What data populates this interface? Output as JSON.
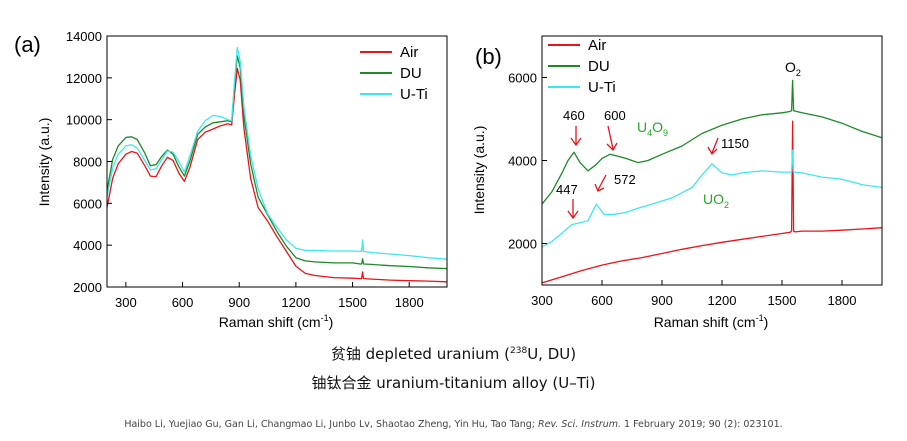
{
  "chart_data": [
    {
      "type": "line",
      "panel_label": "(a)",
      "xlabel_main": "Raman shift (cm",
      "xlabel_sup": "-1",
      "xlabel_tail": ")",
      "ylabel": "Intensity (a.u.)",
      "xlim": [
        200,
        2000
      ],
      "ylim": [
        2000,
        14000
      ],
      "xticks": [
        300,
        600,
        900,
        1200,
        1500,
        1800
      ],
      "yticks": [
        2000,
        4000,
        6000,
        8000,
        10000,
        12000,
        14000
      ],
      "legend_position": "top-right",
      "series": [
        {
          "name": "Air",
          "color": "#e8141b",
          "points": [
            [
              200,
              5800
            ],
            [
              230,
              7200
            ],
            [
              260,
              7900
            ],
            [
              300,
              8350
            ],
            [
              330,
              8480
            ],
            [
              360,
              8400
            ],
            [
              400,
              7800
            ],
            [
              430,
              7300
            ],
            [
              460,
              7280
            ],
            [
              490,
              7800
            ],
            [
              520,
              8200
            ],
            [
              550,
              8050
            ],
            [
              580,
              7450
            ],
            [
              610,
              7050
            ],
            [
              640,
              7750
            ],
            [
              680,
              9050
            ],
            [
              720,
              9400
            ],
            [
              760,
              9550
            ],
            [
              800,
              9700
            ],
            [
              840,
              9800
            ],
            [
              860,
              9750
            ],
            [
              875,
              11200
            ],
            [
              890,
              12450
            ],
            [
              905,
              11900
            ],
            [
              925,
              9600
            ],
            [
              960,
              7200
            ],
            [
              1000,
              5800
            ],
            [
              1050,
              5150
            ],
            [
              1100,
              4400
            ],
            [
              1150,
              3700
            ],
            [
              1200,
              3000
            ],
            [
              1250,
              2650
            ],
            [
              1300,
              2550
            ],
            [
              1400,
              2450
            ],
            [
              1500,
              2420
            ],
            [
              1540,
              2400
            ],
            [
              1548,
              2400
            ],
            [
              1553,
              2720
            ],
            [
              1558,
              2400
            ],
            [
              1600,
              2380
            ],
            [
              1700,
              2330
            ],
            [
              1800,
              2300
            ],
            [
              1900,
              2280
            ],
            [
              2000,
              2250
            ]
          ]
        },
        {
          "name": "DU",
          "color": "#1d8a28",
          "points": [
            [
              200,
              6600
            ],
            [
              230,
              8100
            ],
            [
              260,
              8750
            ],
            [
              300,
              9150
            ],
            [
              330,
              9180
            ],
            [
              360,
              9050
            ],
            [
              400,
              8400
            ],
            [
              430,
              7800
            ],
            [
              460,
              7850
            ],
            [
              490,
              8250
            ],
            [
              520,
              8550
            ],
            [
              550,
              8350
            ],
            [
              580,
              7750
            ],
            [
              610,
              7300
            ],
            [
              640,
              8050
            ],
            [
              680,
              9300
            ],
            [
              720,
              9650
            ],
            [
              760,
              9850
            ],
            [
              800,
              9900
            ],
            [
              840,
              9950
            ],
            [
              860,
              9900
            ],
            [
              875,
              11700
            ],
            [
              890,
              13050
            ],
            [
              905,
              12500
            ],
            [
              925,
              10200
            ],
            [
              960,
              7900
            ],
            [
              1000,
              6300
            ],
            [
              1050,
              5450
            ],
            [
              1100,
              4650
            ],
            [
              1150,
              3950
            ],
            [
              1200,
              3400
            ],
            [
              1250,
              3250
            ],
            [
              1300,
              3200
            ],
            [
              1400,
              3150
            ],
            [
              1500,
              3150
            ],
            [
              1540,
              3100
            ],
            [
              1548,
              3100
            ],
            [
              1553,
              3350
            ],
            [
              1558,
              3100
            ],
            [
              1600,
              3080
            ],
            [
              1700,
              3020
            ],
            [
              1800,
              2980
            ],
            [
              1900,
              2920
            ],
            [
              2000,
              2880
            ]
          ]
        },
        {
          "name": "U-Ti",
          "color": "#3de7ef",
          "points": [
            [
              200,
              6300
            ],
            [
              230,
              7700
            ],
            [
              260,
              8350
            ],
            [
              300,
              8750
            ],
            [
              330,
              8800
            ],
            [
              360,
              8650
            ],
            [
              400,
              8050
            ],
            [
              430,
              7600
            ],
            [
              460,
              7650
            ],
            [
              490,
              8100
            ],
            [
              520,
              8500
            ],
            [
              550,
              8450
            ],
            [
              580,
              8000
            ],
            [
              610,
              7500
            ],
            [
              640,
              8300
            ],
            [
              680,
              9450
            ],
            [
              720,
              9950
            ],
            [
              760,
              10200
            ],
            [
              800,
              10150
            ],
            [
              840,
              10000
            ],
            [
              860,
              9950
            ],
            [
              875,
              11800
            ],
            [
              890,
              13450
            ],
            [
              905,
              12800
            ],
            [
              925,
              10600
            ],
            [
              960,
              8300
            ],
            [
              1000,
              6700
            ],
            [
              1050,
              5500
            ],
            [
              1100,
              4850
            ],
            [
              1150,
              4250
            ],
            [
              1200,
              3850
            ],
            [
              1250,
              3750
            ],
            [
              1300,
              3750
            ],
            [
              1400,
              3720
            ],
            [
              1500,
              3720
            ],
            [
              1540,
              3700
            ],
            [
              1548,
              3700
            ],
            [
              1553,
              4250
            ],
            [
              1558,
              3700
            ],
            [
              1600,
              3650
            ],
            [
              1700,
              3580
            ],
            [
              1800,
              3500
            ],
            [
              1900,
              3400
            ],
            [
              2000,
              3330
            ]
          ]
        }
      ]
    },
    {
      "type": "line",
      "panel_label": "(b)",
      "xlabel_main": "Raman shift (cm",
      "xlabel_sup": "-1",
      "xlabel_tail": ")",
      "ylabel": "Intensity (a.u.)",
      "xlim": [
        300,
        2000
      ],
      "ylim": [
        1000,
        7000
      ],
      "xticks": [
        300,
        600,
        900,
        1200,
        1500,
        1800
      ],
      "yticks": [
        2000,
        4000,
        6000
      ],
      "legend_position": "top-left",
      "series": [
        {
          "name": "Air",
          "color": "#e8141b",
          "points": [
            [
              300,
              1050
            ],
            [
              400,
              1200
            ],
            [
              500,
              1350
            ],
            [
              600,
              1480
            ],
            [
              700,
              1580
            ],
            [
              800,
              1660
            ],
            [
              900,
              1760
            ],
            [
              1000,
              1860
            ],
            [
              1100,
              1950
            ],
            [
              1200,
              2030
            ],
            [
              1300,
              2100
            ],
            [
              1400,
              2170
            ],
            [
              1500,
              2240
            ],
            [
              1540,
              2270
            ],
            [
              1548,
              2300
            ],
            [
              1553,
              4950
            ],
            [
              1558,
              2300
            ],
            [
              1565,
              2280
            ],
            [
              1600,
              2300
            ],
            [
              1700,
              2300
            ],
            [
              1800,
              2320
            ],
            [
              1900,
              2350
            ],
            [
              2000,
              2380
            ]
          ]
        },
        {
          "name": "DU",
          "color": "#1d8a28",
          "points": [
            [
              300,
              2950
            ],
            [
              350,
              3250
            ],
            [
              400,
              3700
            ],
            [
              430,
              4000
            ],
            [
              460,
              4200
            ],
            [
              490,
              3950
            ],
            [
              530,
              3750
            ],
            [
              570,
              3900
            ],
            [
              600,
              4050
            ],
            [
              640,
              4150
            ],
            [
              680,
              4100
            ],
            [
              720,
              4050
            ],
            [
              780,
              3950
            ],
            [
              830,
              4000
            ],
            [
              900,
              4150
            ],
            [
              1000,
              4350
            ],
            [
              1100,
              4650
            ],
            [
              1200,
              4850
            ],
            [
              1300,
              5000
            ],
            [
              1400,
              5100
            ],
            [
              1500,
              5150
            ],
            [
              1540,
              5180
            ],
            [
              1548,
              5200
            ],
            [
              1553,
              5930
            ],
            [
              1558,
              5200
            ],
            [
              1600,
              5150
            ],
            [
              1700,
              5050
            ],
            [
              1800,
              4900
            ],
            [
              1900,
              4700
            ],
            [
              2000,
              4550
            ]
          ]
        },
        {
          "name": "U-Ti",
          "color": "#3de7ef",
          "points": [
            [
              300,
              1920
            ],
            [
              350,
              2050
            ],
            [
              400,
              2250
            ],
            [
              447,
              2450
            ],
            [
              490,
              2500
            ],
            [
              530,
              2550
            ],
            [
              572,
              2950
            ],
            [
              610,
              2700
            ],
            [
              660,
              2700
            ],
            [
              720,
              2750
            ],
            [
              780,
              2850
            ],
            [
              850,
              2950
            ],
            [
              950,
              3100
            ],
            [
              1050,
              3350
            ],
            [
              1100,
              3650
            ],
            [
              1150,
              3920
            ],
            [
              1200,
              3700
            ],
            [
              1250,
              3650
            ],
            [
              1300,
              3700
            ],
            [
              1400,
              3750
            ],
            [
              1500,
              3720
            ],
            [
              1540,
              3720
            ],
            [
              1548,
              3720
            ],
            [
              1553,
              4250
            ],
            [
              1558,
              3720
            ],
            [
              1600,
              3700
            ],
            [
              1700,
              3600
            ],
            [
              1800,
              3550
            ],
            [
              1900,
              3420
            ],
            [
              2000,
              3350
            ]
          ]
        }
      ],
      "annotations": {
        "peak_460": "460",
        "peak_600": "600",
        "peak_447": "447",
        "peak_572": "572",
        "peak_1150": "1150",
        "phase_u4o9_base": "U",
        "phase_u4o9_sub1": "4",
        "phase_u4o9_mid": "O",
        "phase_u4o9_sub2": "9",
        "phase_uo2_base": "UO",
        "phase_uo2_sub": "2",
        "o2_base": "O",
        "o2_sub": "2"
      }
    }
  ],
  "captions": {
    "line1_prefix": "贫铀 depleted uranium (",
    "line1_sup": "238",
    "line1_suffix": "U, DU)",
    "line2": "铀钛合金 uranium-titanium alloy (U–Ti)"
  },
  "citation": {
    "authors": "Haibo Li, Yuejiao Gu, Gan Li, Changmao Li, Junbo Lv, Shaotao Zheng, Yin Hu, Tao Tang; ",
    "journal": "Rev. Sci. Instrum.",
    "details": " 1 February 2019; 90 (2): 023101."
  },
  "colors": {
    "annotation_green": "#2aa52f",
    "arrow_red": "#e8141b"
  }
}
